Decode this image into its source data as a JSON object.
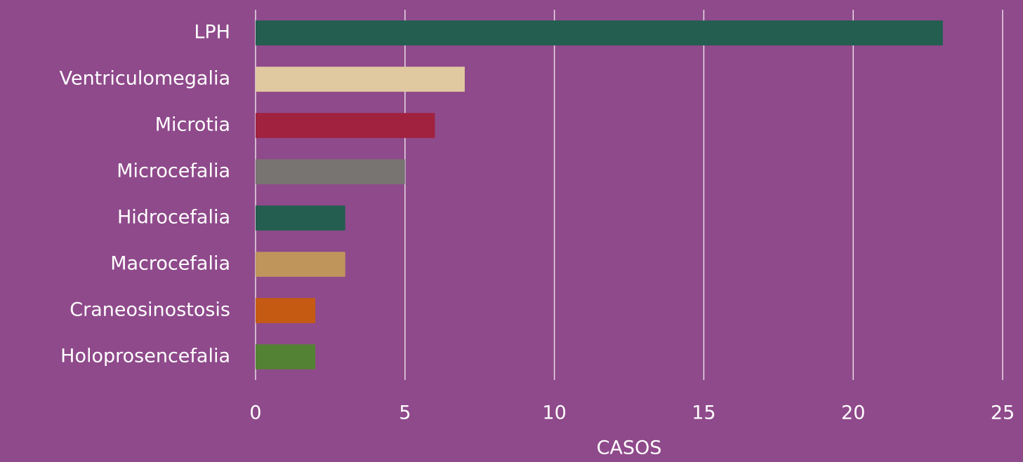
{
  "chart_data": {
    "type": "bar",
    "orientation": "horizontal",
    "categories": [
      "LPH",
      "Ventriculomegalia",
      "Microtia",
      "Microcefalia",
      "Hidrocefalia",
      "Macrocefalia",
      "Craneosinostosis",
      "Holoprosencefalia"
    ],
    "values": [
      23,
      7,
      6,
      5,
      3,
      3,
      2,
      2
    ],
    "colors": [
      "#235e50",
      "#e0c9a0",
      "#a0223f",
      "#777472",
      "#235e50",
      "#bf955c",
      "#c55a13",
      "#548235"
    ],
    "xlabel": "CASOS",
    "xlim": [
      0,
      25
    ],
    "xticks": [
      0,
      5,
      10,
      15,
      20,
      25
    ],
    "grid": true
  }
}
